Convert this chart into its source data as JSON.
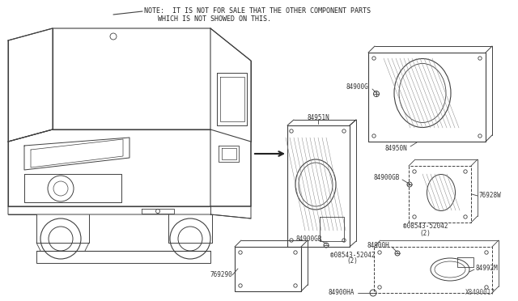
{
  "bg_color": "#ffffff",
  "line_color": "#404040",
  "text_color": "#333333",
  "note_line1": "NOTE:  IT IS NOT FOR SALE THAT THE OTHER COMPONENT PARTS",
  "note_line2": "WHICH IS NOT SHOWED ON THIS.",
  "diagram_id": "X8490017",
  "figsize": [
    6.4,
    3.72
  ],
  "dpi": 100
}
